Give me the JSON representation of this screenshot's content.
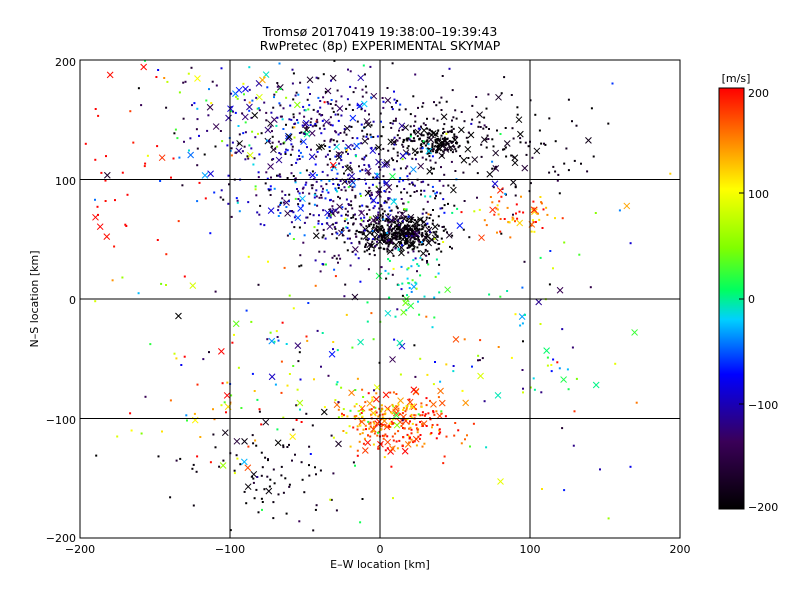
{
  "chart_data": {
    "type": "scatter",
    "title": "Tromsø 20170419 19:38:00–19:39:43",
    "subtitle": "RwPretec (8p) EXPERIMENTAL SKYMAP",
    "xlabel": "E–W location [km]",
    "ylabel": "N–S location [km]",
    "xlim": [
      -200,
      200
    ],
    "ylim": [
      -200,
      200
    ],
    "x_ticks": [
      "−200",
      "−100",
      "0",
      "100",
      "200"
    ],
    "y_ticks": [
      "−200",
      "−100",
      "0",
      "100",
      "200"
    ],
    "grid": true,
    "colorbar": {
      "label": "[m/s]",
      "range": [
        -200,
        200
      ],
      "ticks": [
        "200",
        "100",
        "0",
        "−100",
        "−200"
      ],
      "colormap": "black-purple-blue-cyan-green-yellow-red"
    },
    "markers": [
      "small dot",
      "×"
    ],
    "clusters": [
      {
        "x": 15,
        "y": 55,
        "sx": 14,
        "sy": 8,
        "n": 420,
        "v": -195,
        "vs": 10
      },
      {
        "x": 35,
        "y": 130,
        "sx": 12,
        "sy": 6,
        "n": 160,
        "v": -195,
        "vs": 10
      },
      {
        "x": 60,
        "y": 130,
        "sx": 40,
        "sy": 25,
        "n": 180,
        "v": -185,
        "vs": 15
      },
      {
        "x": -10,
        "y": 65,
        "sx": 22,
        "sy": 22,
        "n": 200,
        "v": -150,
        "vs": 40
      },
      {
        "x": -25,
        "y": 90,
        "sx": 40,
        "sy": 22,
        "n": 300,
        "v": -110,
        "vs": 70
      },
      {
        "x": -35,
        "y": 145,
        "sx": 40,
        "sy": 25,
        "n": 320,
        "v": -140,
        "vs": 50
      },
      {
        "x": -90,
        "y": 150,
        "sx": 30,
        "sy": 25,
        "n": 120,
        "v": -40,
        "vs": 100
      },
      {
        "x": 20,
        "y": 15,
        "sx": 10,
        "sy": 12,
        "n": 40,
        "v": 0,
        "vs": 20
      },
      {
        "x": 90,
        "y": 70,
        "sx": 15,
        "sy": 10,
        "n": 60,
        "v": 160,
        "vs": 40
      },
      {
        "x": -175,
        "y": 100,
        "sx": 20,
        "sy": 60,
        "n": 40,
        "v": 200,
        "vs": 10
      },
      {
        "x": 15,
        "y": -105,
        "sx": 18,
        "sy": 12,
        "n": 220,
        "v": 175,
        "vs": 30
      },
      {
        "x": -5,
        "y": -95,
        "sx": 12,
        "sy": 10,
        "n": 80,
        "v": 120,
        "vs": 40
      },
      {
        "x": -75,
        "y": -145,
        "sx": 25,
        "sy": 25,
        "n": 90,
        "v": -190,
        "vs": 15
      },
      {
        "x": -110,
        "y": -90,
        "sx": 30,
        "sy": 30,
        "n": 50,
        "v": 130,
        "vs": 70
      },
      {
        "x": 80,
        "y": -50,
        "sx": 45,
        "sy": 30,
        "n": 50,
        "v": 0,
        "vs": 110
      },
      {
        "x": -40,
        "y": -40,
        "sx": 40,
        "sy": 35,
        "n": 50,
        "v": -20,
        "vs": 120
      },
      {
        "x": 0,
        "y": 0,
        "sx": 110,
        "sy": 110,
        "n": 150,
        "v": 0,
        "vs": 130
      }
    ]
  }
}
